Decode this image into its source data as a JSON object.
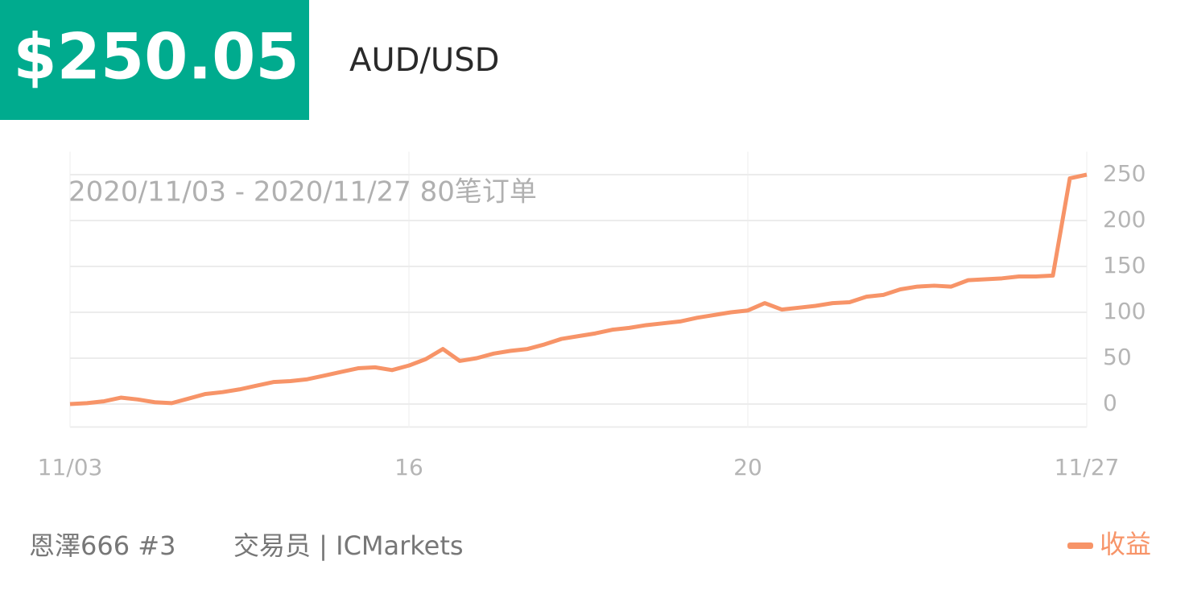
{
  "header": {
    "price": "$250.05",
    "symbol": "AUD/USD"
  },
  "chart_data": {
    "type": "line",
    "subtitle": "2020/11/03 - 2020/11/27 80笔订单",
    "x": [
      0,
      1,
      2,
      3,
      4,
      5,
      6,
      7,
      8,
      9,
      10,
      11,
      12,
      13,
      14,
      15,
      16,
      17,
      18,
      19,
      20,
      21,
      22,
      23,
      24,
      25,
      26,
      27,
      28,
      29,
      30,
      31,
      32,
      33,
      34,
      35,
      36,
      37,
      38,
      39,
      40,
      41,
      42,
      43,
      44,
      45,
      46,
      47,
      48,
      49,
      50,
      51,
      52,
      53,
      54,
      55,
      56,
      57,
      58,
      59,
      60
    ],
    "xlim": [
      0,
      60
    ],
    "xticks": [
      {
        "value": 0,
        "label": "11/03"
      },
      {
        "value": 20,
        "label": "16"
      },
      {
        "value": 40,
        "label": "20"
      },
      {
        "value": 60,
        "label": "11/27"
      }
    ],
    "ylim": [
      -25,
      275
    ],
    "yticks": [
      0,
      50,
      100,
      150,
      200,
      250
    ],
    "grid": true,
    "legend": "bottom-right",
    "series": [
      {
        "name": "收益",
        "color": "#f79468",
        "values": [
          0,
          1,
          3,
          7,
          5,
          2,
          1,
          6,
          11,
          13,
          16,
          20,
          24,
          25,
          27,
          31,
          35,
          39,
          40,
          37,
          42,
          49,
          60,
          47,
          50,
          55,
          58,
          60,
          65,
          71,
          74,
          77,
          81,
          83,
          86,
          88,
          90,
          94,
          97,
          100,
          102,
          110,
          103,
          105,
          107,
          110,
          111,
          117,
          119,
          125,
          128,
          129,
          128,
          135,
          136,
          137,
          139,
          139,
          140,
          246,
          250
        ]
      }
    ]
  },
  "footer": {
    "account": "恩澤666 #3",
    "broker": "交易员 | ICMarkets"
  }
}
